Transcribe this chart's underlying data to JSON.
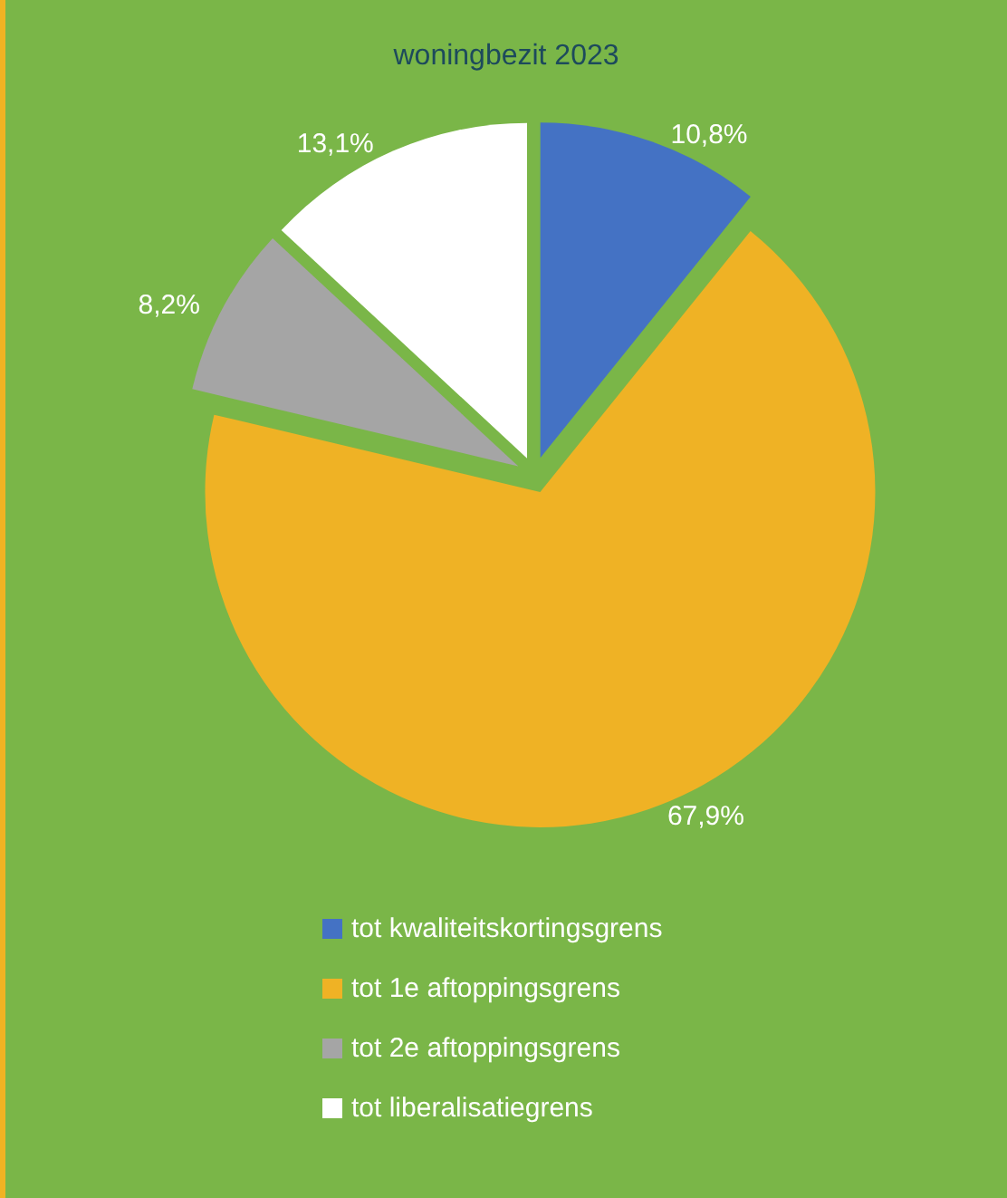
{
  "chart_data": {
    "type": "pie",
    "title": "woningbezit 2023",
    "categories": [
      "tot kwaliteitskortingsgrens",
      "tot 1e aftoppingsgrens",
      "tot 2e aftoppingsgrens",
      "tot liberalisatiegrens"
    ],
    "values": [
      10.8,
      67.9,
      8.2,
      13.1
    ],
    "colors": [
      "#4472c4",
      "#efb225",
      "#a5a5a5",
      "#ffffff"
    ],
    "value_labels": [
      "10,8%",
      "67,9%",
      "8,2%",
      "13,1%"
    ],
    "legend": "bottom"
  }
}
